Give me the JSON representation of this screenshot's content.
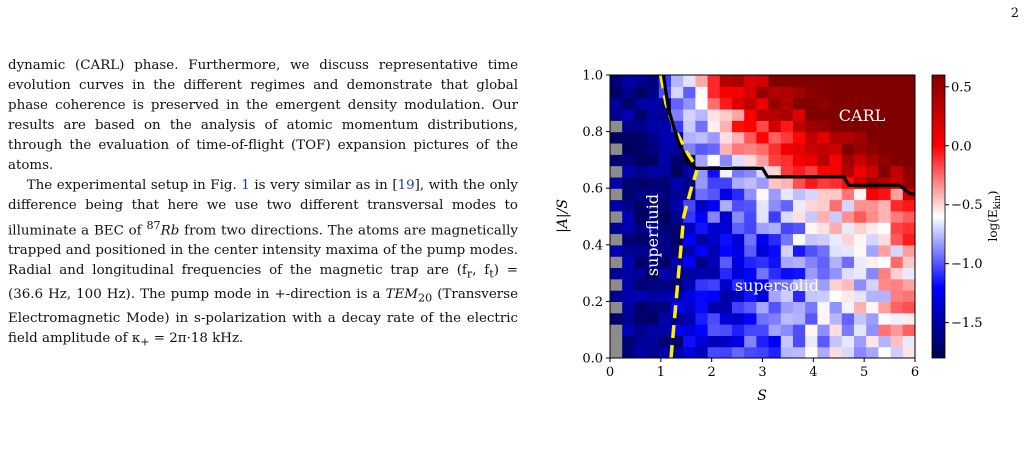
{
  "page_number": "2",
  "paragraphs": {
    "p1": "dynamic (CARL) phase. Furthermore, we discuss representative time evolution curves in the different regimes and demonstrate that global phase coherence is preserved in the emergent density modulation. Our results are based on the analysis of atomic momentum distributions, through the evaluation of time-of-flight (TOF) expansion pictures of the atoms.",
    "p2_a": "The experimental setup in Fig. ",
    "p2_fig": "1",
    "p2_b": " is very similar as in [",
    "p2_ref": "19",
    "p2_c": "], with the only difference being that here we use two different transversal modes to illuminate a BEC of ",
    "p2_iso_sup": "87",
    "p2_iso": "Rb",
    "p2_d": " from two directions. The atoms are magnetically trapped and positioned in the center intensity maxima of the pump modes. Radial and longitudinal frequencies of the magnetic trap are (f",
    "p2_sub_r": "r",
    "p2_e": ", f",
    "p2_sub_t": "t",
    "p2_f": ") = (36.6 Hz, 100 Hz). The pump mode in +-direction is a ",
    "p2_tem": "TEM",
    "p2_tem_sub": "20",
    "p2_g": " (Transverse Electromagnetic Mode) in s-polarization with a decay rate of the electric field amplitude of κ",
    "p2_kappa_sub": "+",
    "p2_h": " = 2π·18 kHz."
  },
  "chart_data": {
    "type": "heatmap",
    "xlabel": "S",
    "ylabel": "|A|/S",
    "xlim": [
      0,
      6
    ],
    "ylim": [
      0,
      1
    ],
    "x_ticks": [
      "0",
      "1",
      "2",
      "3",
      "4",
      "5",
      "6"
    ],
    "y_ticks": [
      "0.0",
      "0.2",
      "0.4",
      "0.6",
      "0.8",
      "1.0"
    ],
    "colorbar": {
      "label": "log(E_kin)",
      "ticks": [
        "0.5",
        "0.0",
        "−0.5",
        "−1.0",
        "−1.5"
      ],
      "tick_values": [
        0.5,
        0.0,
        -0.5,
        -1.0,
        -1.5
      ],
      "range": [
        -1.8,
        0.6
      ],
      "colormap": "seismic"
    },
    "grid_cols": 25,
    "grid_rows": 25,
    "region_labels": [
      "superfluid",
      "supersolid",
      "CARL"
    ],
    "boundary_superfluid_supersolid": [
      [
        1.2,
        0.0
      ],
      [
        1.25,
        0.1
      ],
      [
        1.3,
        0.2
      ],
      [
        1.35,
        0.3
      ],
      [
        1.4,
        0.4
      ],
      [
        1.45,
        0.5
      ],
      [
        1.6,
        0.6
      ],
      [
        1.72,
        0.67
      ],
      [
        1.5,
        0.73
      ],
      [
        1.25,
        0.82
      ],
      [
        1.1,
        0.9
      ],
      [
        1.0,
        1.0
      ]
    ],
    "boundary_supersolid_carl": [
      [
        1.05,
        1.0
      ],
      [
        1.15,
        0.88
      ],
      [
        1.35,
        0.76
      ],
      [
        1.55,
        0.69
      ],
      [
        1.7,
        0.67
      ],
      [
        3.0,
        0.67
      ],
      [
        3.1,
        0.64
      ],
      [
        4.6,
        0.64
      ],
      [
        4.7,
        0.61
      ],
      [
        5.7,
        0.61
      ],
      [
        5.9,
        0.58
      ],
      [
        6.0,
        0.58
      ]
    ]
  }
}
